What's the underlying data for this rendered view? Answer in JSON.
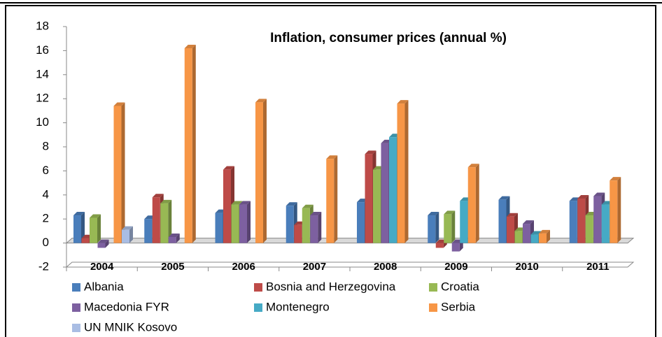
{
  "chart_data": {
    "type": "bar",
    "title": "Inflation, consumer prices (annual %)",
    "categories": [
      "2004",
      "2005",
      "2006",
      "2007",
      "2008",
      "2009",
      "2010",
      "2011"
    ],
    "series": [
      {
        "name": "Albania",
        "color": "#4a7ebb",
        "values": [
          2.3,
          2.0,
          2.5,
          3.1,
          3.4,
          2.3,
          3.6,
          3.5
        ]
      },
      {
        "name": "Bosnia and Herzegovina",
        "color": "#be4b48",
        "values": [
          0.4,
          3.8,
          6.1,
          1.5,
          7.4,
          -0.4,
          2.2,
          3.7
        ]
      },
      {
        "name": "Croatia",
        "color": "#98b954",
        "values": [
          2.1,
          3.3,
          3.2,
          2.9,
          6.1,
          2.4,
          1.0,
          2.3
        ]
      },
      {
        "name": "Macedonia FYR",
        "color": "#7d60a0",
        "values": [
          -0.4,
          0.5,
          3.2,
          2.3,
          8.3,
          -0.7,
          1.6,
          3.9
        ]
      },
      {
        "name": "Montenegro",
        "color": "#46aac5",
        "values": [
          null,
          null,
          null,
          null,
          8.8,
          3.5,
          0.7,
          3.2
        ]
      },
      {
        "name": "Serbia",
        "color": "#f79646",
        "values": [
          11.4,
          16.2,
          11.7,
          7.0,
          11.6,
          6.3,
          0.8,
          5.2
        ]
      },
      {
        "name": "UN MNIK Kosovo",
        "color": "#a9bde3",
        "values": [
          1.1,
          null,
          null,
          null,
          null,
          null,
          null,
          null
        ]
      }
    ],
    "ylim": [
      -2,
      18
    ],
    "yticks": [
      -2,
      0,
      2,
      4,
      6,
      8,
      10,
      12,
      14,
      16,
      18
    ]
  }
}
